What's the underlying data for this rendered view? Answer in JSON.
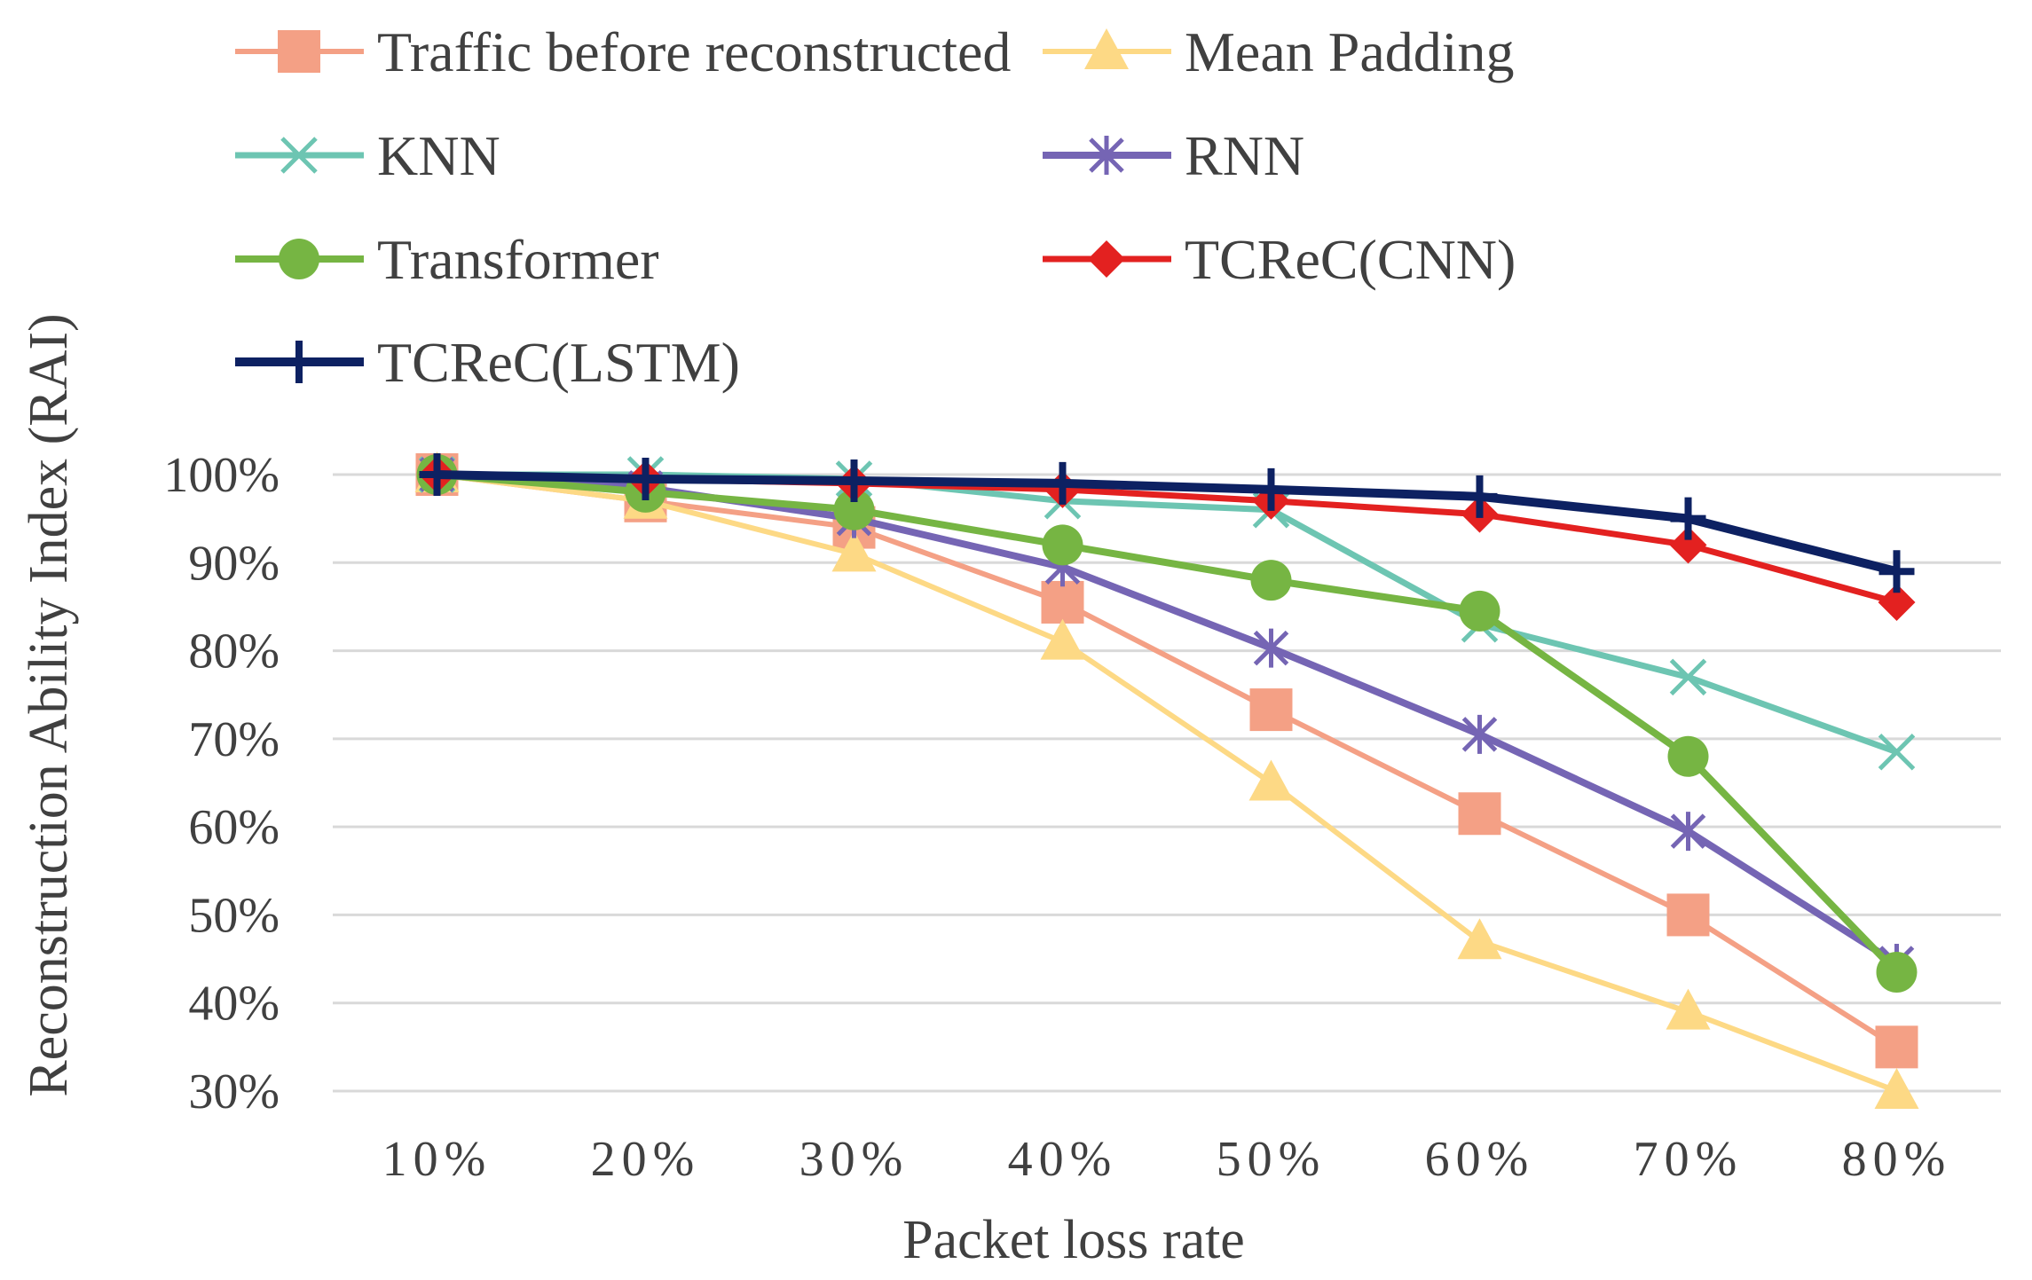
{
  "chart_data": {
    "type": "line",
    "title": "",
    "xlabel": "Packet loss rate",
    "ylabel": "Reconstruction Ability Index (RAI)",
    "categories": [
      "10%",
      "20%",
      "30%",
      "40%",
      "50%",
      "60%",
      "70%",
      "80%"
    ],
    "ylim": [
      30,
      100
    ],
    "yticks": [
      100,
      90,
      80,
      70,
      60,
      50,
      40,
      30
    ],
    "ytick_labels": [
      "100%",
      "90%",
      "80%",
      "70%",
      "60%",
      "50%",
      "40%",
      "30%"
    ],
    "grid": true,
    "legend_position": "top",
    "series": [
      {
        "name": "Traffic before reconstructed",
        "color": "#f4a085",
        "marker": "square",
        "values": [
          100,
          97,
          94,
          85.5,
          73.3,
          61.5,
          50,
          35
        ]
      },
      {
        "name": "Mean Padding",
        "color": "#fdd985",
        "marker": "triangle",
        "values": [
          100,
          97,
          91,
          81,
          65,
          47,
          39,
          30
        ]
      },
      {
        "name": "KNN",
        "color": "#6dc5b2",
        "marker": "x",
        "values": [
          100,
          100,
          99.5,
          97,
          96,
          83,
          77,
          68.5
        ]
      },
      {
        "name": "RNN",
        "color": "#7565b4",
        "marker": "asterisk",
        "values": [
          100,
          98.5,
          95,
          89.5,
          80.3,
          70.5,
          59.5,
          44.5
        ]
      },
      {
        "name": "Transformer",
        "color": "#76b543",
        "marker": "circle",
        "values": [
          100,
          98,
          96,
          92,
          88,
          84.5,
          68,
          43.5
        ]
      },
      {
        "name": "TCReC(CNN)",
        "color": "#e32120",
        "marker": "diamond",
        "values": [
          100,
          99.5,
          99,
          98.3,
          97,
          95.5,
          92,
          85.5
        ]
      },
      {
        "name": "TCReC(LSTM)",
        "color": "#0d2162",
        "marker": "plus",
        "values": [
          100,
          99.5,
          99.3,
          99,
          98.3,
          97.5,
          95,
          89
        ]
      }
    ]
  }
}
